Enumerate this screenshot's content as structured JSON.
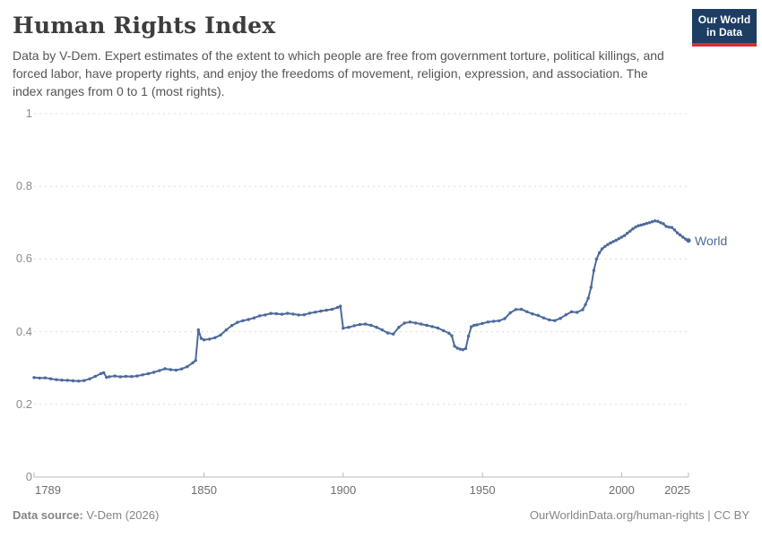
{
  "header": {
    "title": "Human Rights Index",
    "subtitle": "Data by V-Dem. Expert estimates of the extent to which people are free from government torture, political killings, and forced labor, have property rights, and enjoy the freedoms of movement, religion, expression, and association. The index ranges from 0 to 1 (most rights).",
    "logo": {
      "line1": "Our World",
      "line2": "in Data"
    }
  },
  "footer": {
    "source_label": "Data source:",
    "source_value": " V-Dem (2026)",
    "right_text": "OurWorldinData.org/human-rights | CC BY"
  },
  "colors": {
    "line": "#4c6a9c",
    "logo_bg": "#1d3d63",
    "logo_red": "#d0342c",
    "grid": "#dcdcdc",
    "axis": "#b8b8b8",
    "tick_text": "#8c8c8c"
  },
  "chart_data": {
    "type": "line",
    "title": "Human Rights Index",
    "xlabel": "",
    "ylabel": "",
    "grid": true,
    "legend_position": "end-of-line",
    "x_axis": {
      "range": [
        1789,
        2024
      ],
      "ticks": [
        1789,
        1850,
        1900,
        1950,
        2000,
        2025
      ]
    },
    "y_axis": {
      "range": [
        0,
        1
      ],
      "ticks": [
        0,
        0.2,
        0.4,
        0.6,
        0.8,
        1
      ]
    },
    "series": [
      {
        "name": "World",
        "points": [
          [
            1789,
            0.274
          ],
          [
            1791,
            0.2725
          ],
          [
            1793,
            0.2728
          ],
          [
            1795,
            0.2705
          ],
          [
            1797,
            0.268
          ],
          [
            1799,
            0.2668
          ],
          [
            1801,
            0.2662
          ],
          [
            1803,
            0.2648
          ],
          [
            1805,
            0.264
          ],
          [
            1807,
            0.2655
          ],
          [
            1809,
            0.2702
          ],
          [
            1811,
            0.277
          ],
          [
            1813,
            0.2848
          ],
          [
            1814,
            0.287
          ],
          [
            1815,
            0.2745
          ],
          [
            1816,
            0.2762
          ],
          [
            1818,
            0.278
          ],
          [
            1820,
            0.2758
          ],
          [
            1822,
            0.2772
          ],
          [
            1824,
            0.2766
          ],
          [
            1826,
            0.278
          ],
          [
            1828,
            0.2812
          ],
          [
            1830,
            0.2846
          ],
          [
            1832,
            0.2882
          ],
          [
            1834,
            0.2928
          ],
          [
            1836,
            0.298
          ],
          [
            1838,
            0.2956
          ],
          [
            1840,
            0.2942
          ],
          [
            1842,
            0.2976
          ],
          [
            1844,
            0.3036
          ],
          [
            1846,
            0.3146
          ],
          [
            1847,
            0.3206
          ],
          [
            1848,
            0.405
          ],
          [
            1849,
            0.3816
          ],
          [
            1850,
            0.3776
          ],
          [
            1852,
            0.3796
          ],
          [
            1854,
            0.3836
          ],
          [
            1856,
            0.391
          ],
          [
            1858,
            0.4046
          ],
          [
            1860,
            0.417
          ],
          [
            1862,
            0.4256
          ],
          [
            1864,
            0.4302
          ],
          [
            1866,
            0.4336
          ],
          [
            1868,
            0.438
          ],
          [
            1870,
            0.4436
          ],
          [
            1872,
            0.446
          ],
          [
            1874,
            0.4502
          ],
          [
            1876,
            0.4496
          ],
          [
            1878,
            0.448
          ],
          [
            1880,
            0.4506
          ],
          [
            1882,
            0.4486
          ],
          [
            1884,
            0.446
          ],
          [
            1886,
            0.4466
          ],
          [
            1888,
            0.451
          ],
          [
            1890,
            0.4536
          ],
          [
            1892,
            0.4566
          ],
          [
            1894,
            0.459
          ],
          [
            1896,
            0.4616
          ],
          [
            1898,
            0.4666
          ],
          [
            1899,
            0.4702
          ],
          [
            1900,
            0.4096
          ],
          [
            1902,
            0.412
          ],
          [
            1904,
            0.4166
          ],
          [
            1906,
            0.4196
          ],
          [
            1908,
            0.421
          ],
          [
            1910,
            0.4176
          ],
          [
            1912,
            0.412
          ],
          [
            1914,
            0.405
          ],
          [
            1916,
            0.3966
          ],
          [
            1918,
            0.3936
          ],
          [
            1920,
            0.412
          ],
          [
            1922,
            0.4236
          ],
          [
            1924,
            0.4266
          ],
          [
            1926,
            0.424
          ],
          [
            1928,
            0.421
          ],
          [
            1930,
            0.4176
          ],
          [
            1932,
            0.414
          ],
          [
            1934,
            0.41
          ],
          [
            1936,
            0.403
          ],
          [
            1938,
            0.3956
          ],
          [
            1939,
            0.3886
          ],
          [
            1940,
            0.36
          ],
          [
            1941,
            0.3546
          ],
          [
            1942,
            0.352
          ],
          [
            1943,
            0.3506
          ],
          [
            1944,
            0.3536
          ],
          [
            1945,
            0.3876
          ],
          [
            1946,
            0.4136
          ],
          [
            1947,
            0.4176
          ],
          [
            1948,
            0.4186
          ],
          [
            1950,
            0.4226
          ],
          [
            1952,
            0.4266
          ],
          [
            1954,
            0.4286
          ],
          [
            1956,
            0.43
          ],
          [
            1958,
            0.436
          ],
          [
            1960,
            0.452
          ],
          [
            1962,
            0.461
          ],
          [
            1964,
            0.4616
          ],
          [
            1966,
            0.455
          ],
          [
            1968,
            0.449
          ],
          [
            1970,
            0.4446
          ],
          [
            1972,
            0.438
          ],
          [
            1974,
            0.4326
          ],
          [
            1976,
            0.4306
          ],
          [
            1978,
            0.4366
          ],
          [
            1980,
            0.4466
          ],
          [
            1982,
            0.4546
          ],
          [
            1984,
            0.4532
          ],
          [
            1986,
            0.4606
          ],
          [
            1987,
            0.4746
          ],
          [
            1988,
            0.492
          ],
          [
            1989,
            0.522
          ],
          [
            1990,
            0.5686
          ],
          [
            1991,
            0.6
          ],
          [
            1992,
            0.617
          ],
          [
            1993,
            0.628
          ],
          [
            1994,
            0.6346
          ],
          [
            1995,
            0.6396
          ],
          [
            1996,
            0.644
          ],
          [
            1997,
            0.648
          ],
          [
            1998,
            0.6516
          ],
          [
            1999,
            0.656
          ],
          [
            2000,
            0.66
          ],
          [
            2001,
            0.6646
          ],
          [
            2002,
            0.671
          ],
          [
            2003,
            0.6766
          ],
          [
            2004,
            0.683
          ],
          [
            2005,
            0.688
          ],
          [
            2006,
            0.6916
          ],
          [
            2007,
            0.6936
          ],
          [
            2008,
            0.6956
          ],
          [
            2009,
            0.698
          ],
          [
            2010,
            0.7
          ],
          [
            2011,
            0.7026
          ],
          [
            2012,
            0.705
          ],
          [
            2013,
            0.7036
          ],
          [
            2014,
            0.7
          ],
          [
            2015,
            0.697
          ],
          [
            2016,
            0.69
          ],
          [
            2017,
            0.6876
          ],
          [
            2018,
            0.6866
          ],
          [
            2019,
            0.68
          ],
          [
            2020,
            0.672
          ],
          [
            2021,
            0.666
          ],
          [
            2022,
            0.66
          ],
          [
            2023,
            0.6546
          ],
          [
            2024,
            0.651
          ]
        ]
      }
    ]
  }
}
